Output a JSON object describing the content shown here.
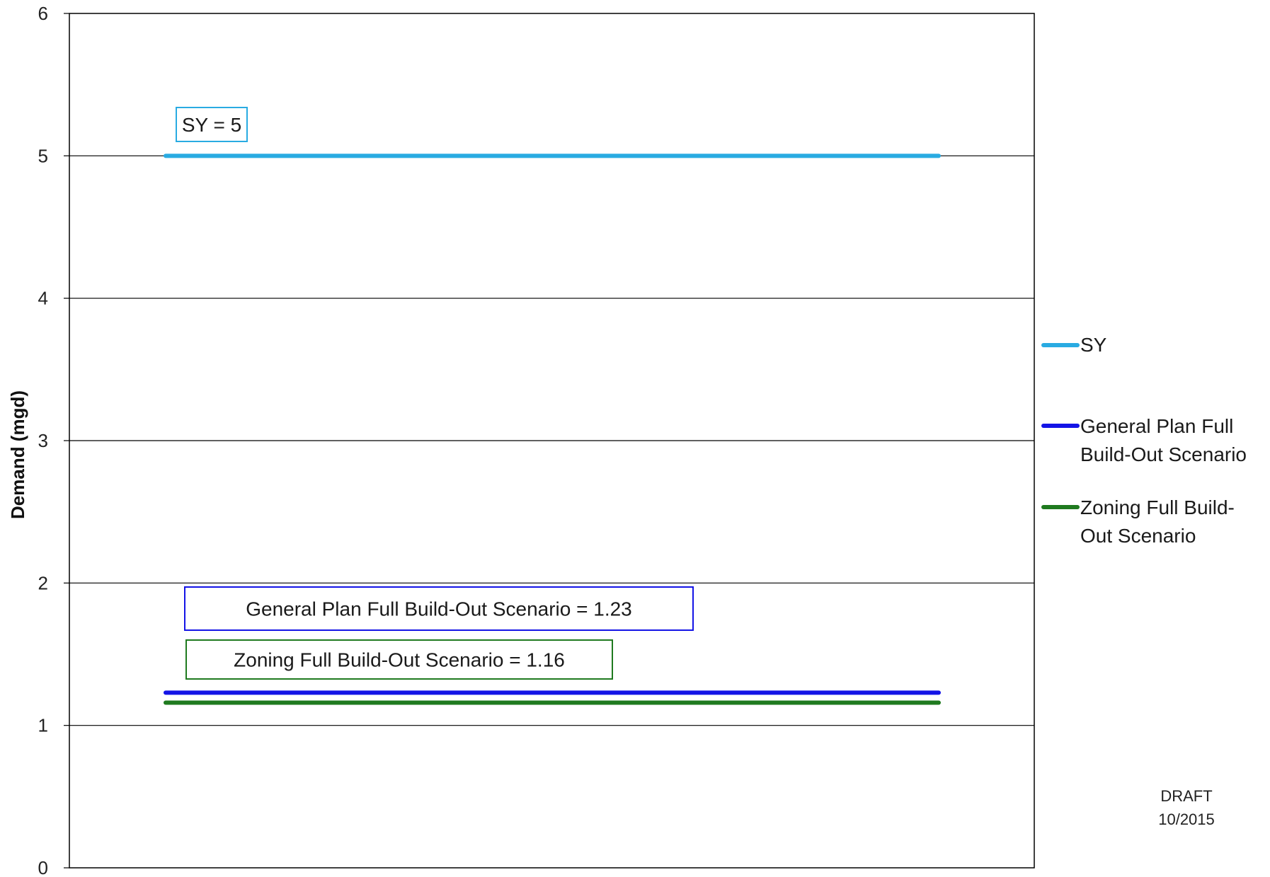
{
  "chart_data": {
    "type": "line",
    "title": "",
    "xlabel": "",
    "ylabel": "Demand (mgd)",
    "ylim": [
      0,
      6
    ],
    "yticks": [
      0,
      1,
      2,
      3,
      4,
      5,
      6
    ],
    "ytick_labels": [
      "0",
      "1",
      "2",
      "3",
      "4",
      "5",
      "6"
    ],
    "grid": true,
    "legend_position": "right",
    "series": [
      {
        "key": "sy",
        "value": 5,
        "color": "#29ABE2",
        "legend_lines": [
          "SY"
        ],
        "annotation": "SY  = 5"
      },
      {
        "key": "general",
        "value": 1.23,
        "color": "#1414E6",
        "legend_lines": [
          "General Plan Full",
          "Build-Out Scenario"
        ],
        "annotation": "General Plan Full Build-Out Scenario  = 1.23"
      },
      {
        "key": "zoning",
        "value": 1.16,
        "color": "#1F7A1F",
        "legend_lines": [
          "Zoning Full Build-",
          "Out Scenario"
        ],
        "annotation": "Zoning Full Build-Out Scenario  = 1.16"
      }
    ],
    "note_lines": [
      "DRAFT",
      "10/2015"
    ]
  }
}
